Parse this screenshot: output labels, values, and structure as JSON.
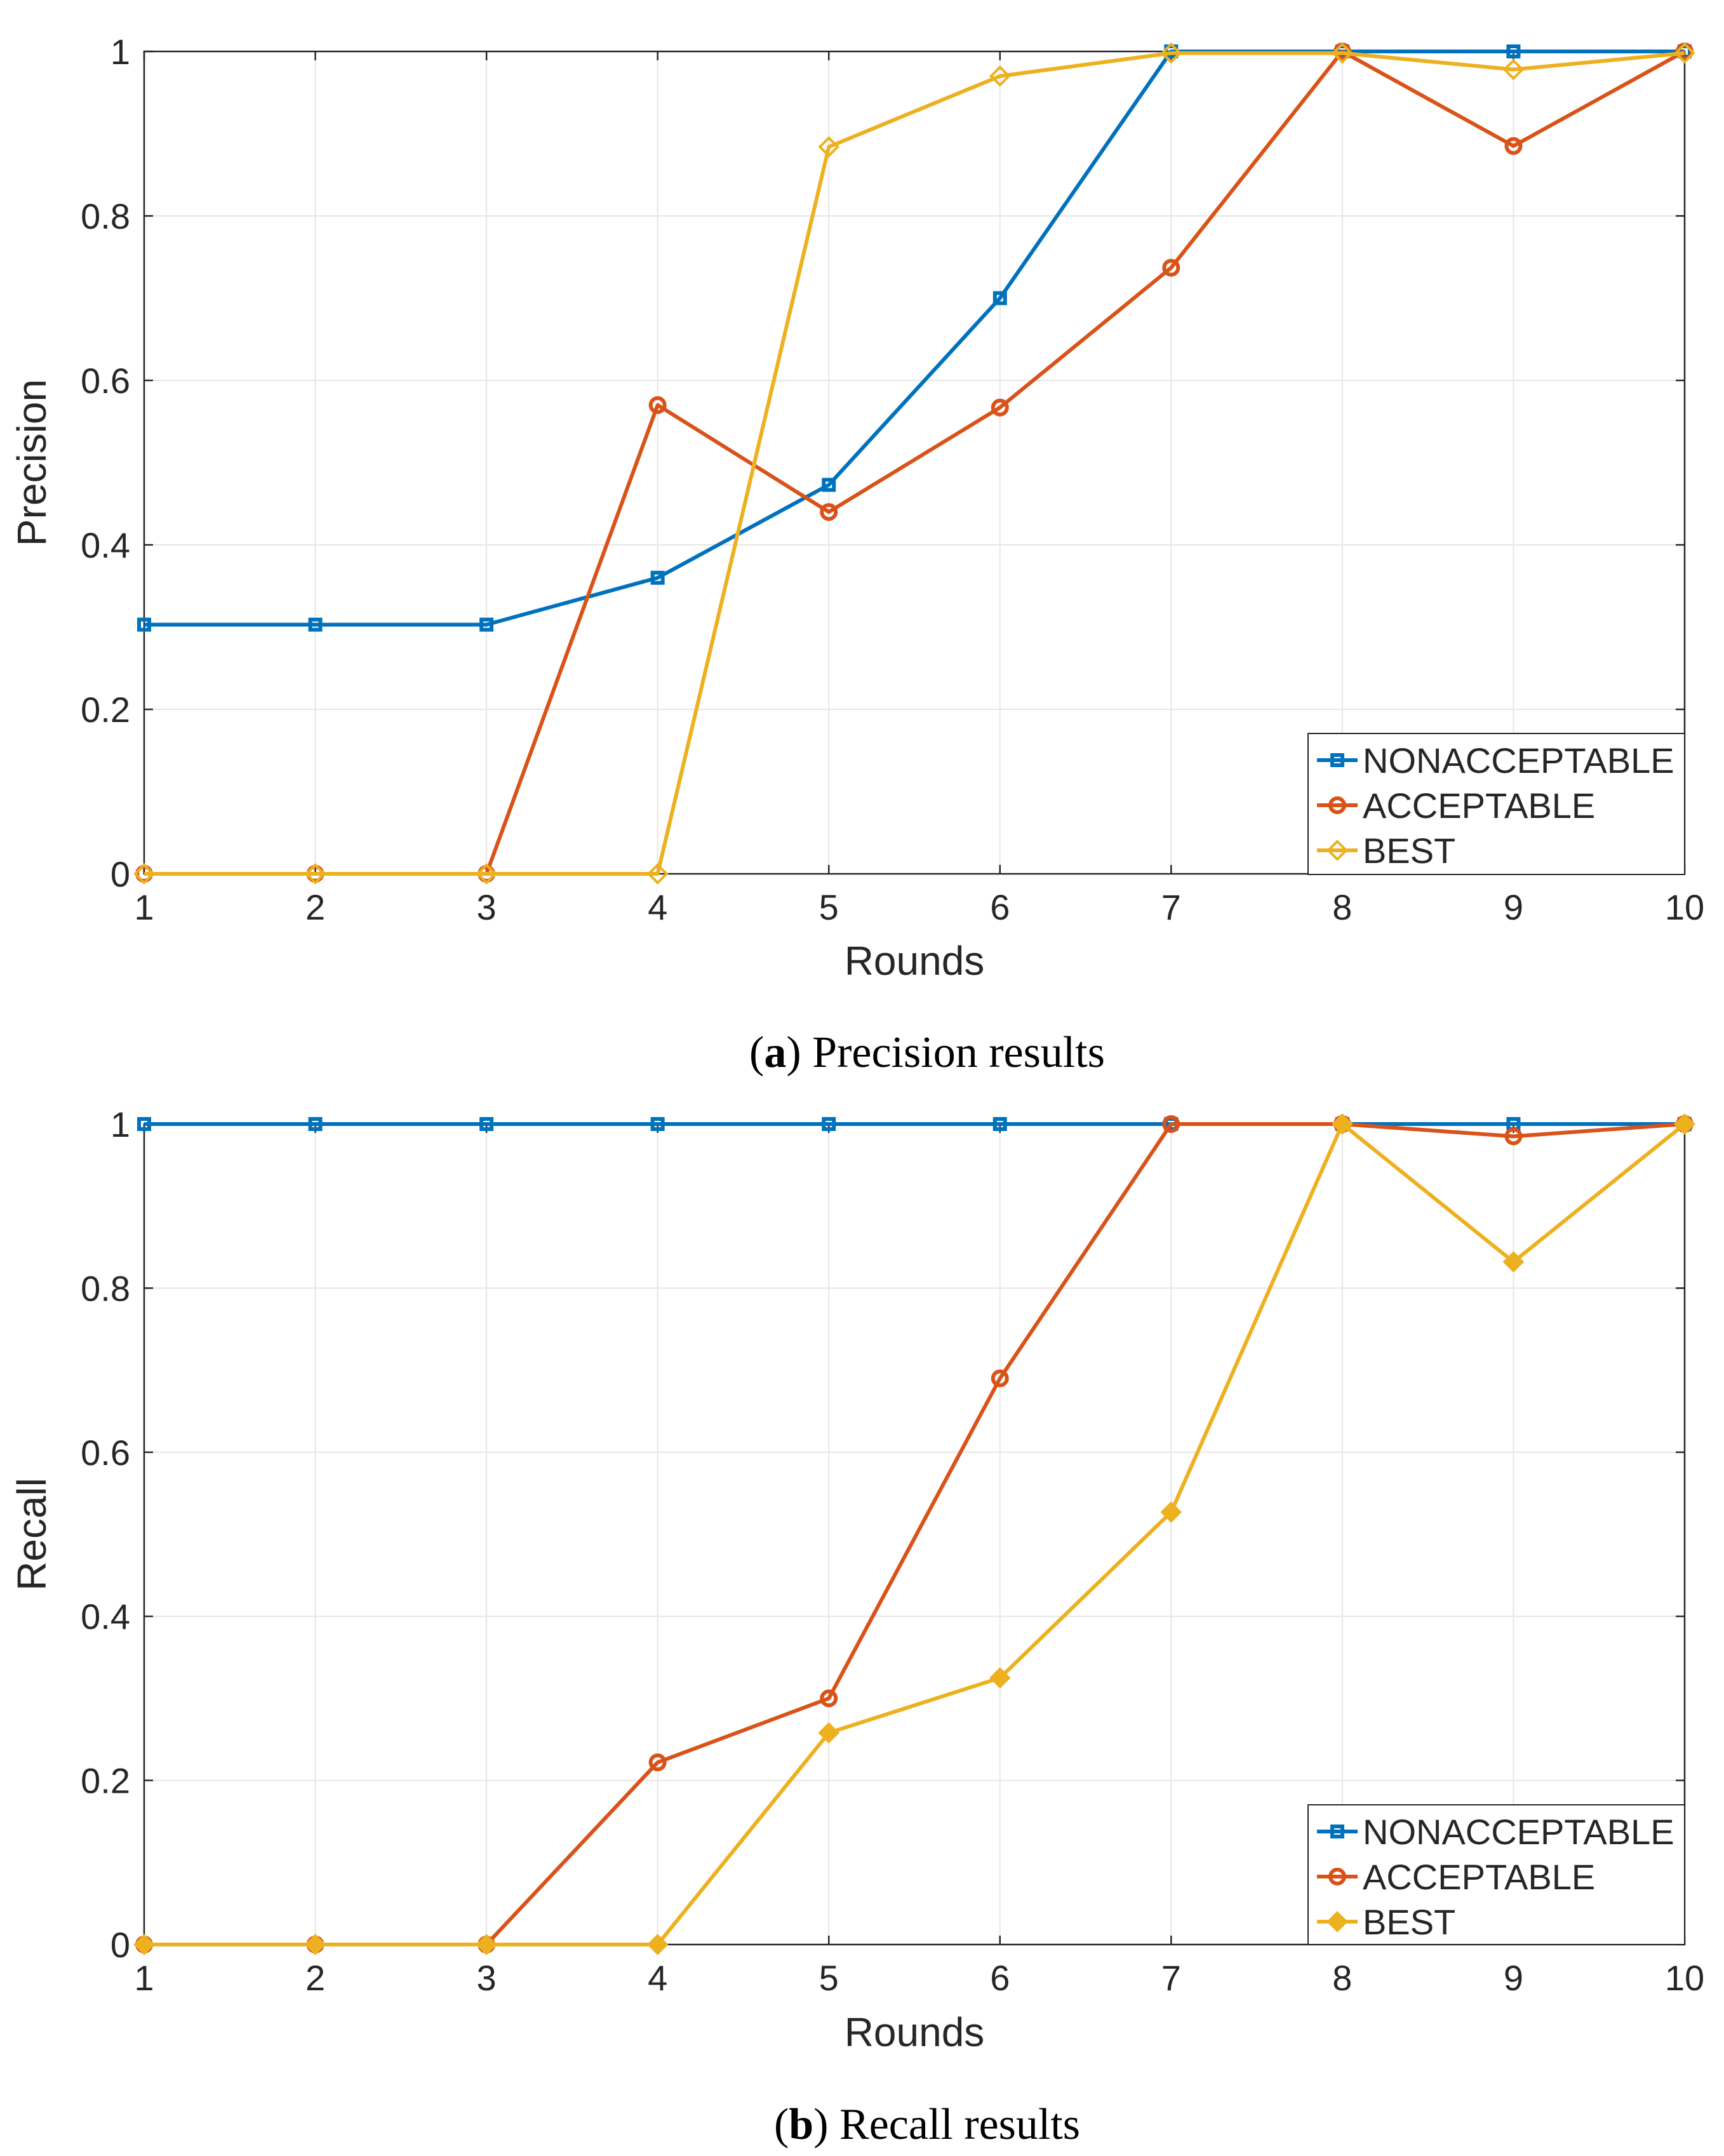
{
  "chart_data": [
    {
      "type": "line",
      "title": "",
      "xlabel": "Rounds",
      "ylabel": "Precision",
      "x": [
        1,
        2,
        3,
        4,
        5,
        6,
        7,
        8,
        9,
        10
      ],
      "xlim": [
        1,
        10
      ],
      "ylim": [
        0,
        1
      ],
      "xticks": [
        "1",
        "2",
        "3",
        "4",
        "5",
        "6",
        "7",
        "8",
        "9",
        "10"
      ],
      "yticks": [
        "0",
        "0.2",
        "0.4",
        "0.6",
        "0.8",
        "1"
      ],
      "grid": true,
      "legend_position": "bottom-right",
      "caption": {
        "letter": "a",
        "text": " Precision results"
      },
      "series": [
        {
          "name": "NONACCEPTABLE",
          "color": "#0072BD",
          "marker": "square",
          "marker_fill": false,
          "values": [
            0.303,
            0.303,
            0.303,
            0.36,
            0.473,
            0.7,
            1.0,
            1.0,
            1.0,
            1.0
          ]
        },
        {
          "name": "ACCEPTABLE",
          "color": "#D95319",
          "marker": "circle",
          "marker_fill": false,
          "values": [
            0,
            0,
            0,
            0.57,
            0.44,
            0.567,
            0.737,
            1.0,
            0.885,
            1.0
          ]
        },
        {
          "name": "BEST",
          "color": "#EDB120",
          "marker": "diamond",
          "marker_fill": false,
          "values": [
            0,
            0,
            0,
            0,
            0.884,
            0.97,
            0.998,
            0.998,
            0.978,
            0.998
          ]
        }
      ]
    },
    {
      "type": "line",
      "title": "",
      "xlabel": "Rounds",
      "ylabel": "Recall",
      "x": [
        1,
        2,
        3,
        4,
        5,
        6,
        7,
        8,
        9,
        10
      ],
      "xlim": [
        1,
        10
      ],
      "ylim": [
        0,
        1
      ],
      "xticks": [
        "1",
        "2",
        "3",
        "4",
        "5",
        "6",
        "7",
        "8",
        "9",
        "10"
      ],
      "yticks": [
        "0",
        "0.2",
        "0.4",
        "0.6",
        "0.8",
        "1"
      ],
      "grid": true,
      "legend_position": "bottom-right",
      "caption": {
        "letter": "b",
        "text": " Recall results"
      },
      "series": [
        {
          "name": "NONACCEPTABLE",
          "color": "#0072BD",
          "marker": "square",
          "marker_fill": false,
          "values": [
            1,
            1,
            1,
            1,
            1,
            1,
            1,
            1,
            1,
            1
          ]
        },
        {
          "name": "ACCEPTABLE",
          "color": "#D95319",
          "marker": "circle",
          "marker_fill": false,
          "values": [
            0,
            0,
            0,
            0.222,
            0.3,
            0.69,
            1.0,
            1.0,
            0.985,
            1.0
          ]
        },
        {
          "name": "BEST",
          "color": "#EDB120",
          "marker": "diamond",
          "marker_fill": true,
          "values": [
            0,
            0,
            0,
            0,
            0.258,
            0.325,
            0.527,
            1.0,
            0.832,
            1.0
          ]
        }
      ]
    }
  ]
}
